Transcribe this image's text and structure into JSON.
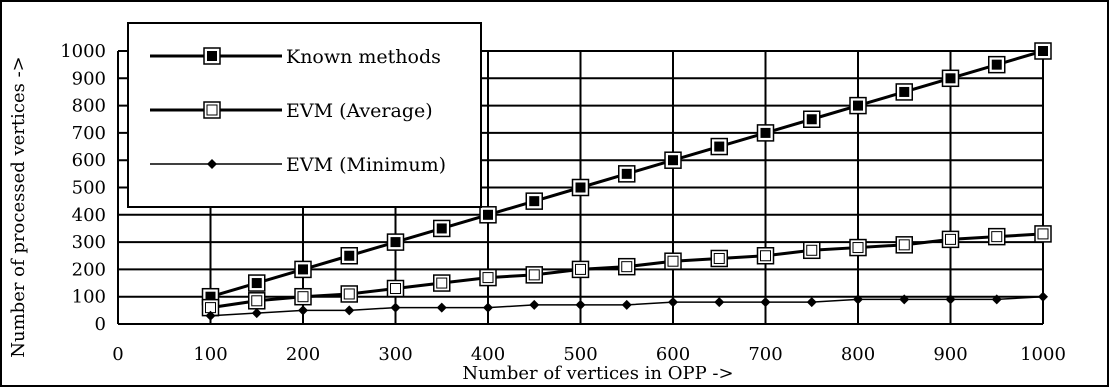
{
  "chart_data": {
    "type": "line",
    "title": "",
    "xlabel": "Number of vertices in OPP ->",
    "ylabel": "Number of processed vertices ->",
    "xlim": [
      0,
      1000
    ],
    "ylim": [
      0,
      1000
    ],
    "x_ticks": [
      0,
      100,
      200,
      300,
      400,
      500,
      600,
      700,
      800,
      900,
      1000
    ],
    "y_ticks": [
      0,
      100,
      200,
      300,
      400,
      500,
      600,
      700,
      800,
      900,
      1000
    ],
    "grid": true,
    "legend_position": "top-left",
    "x": [
      100,
      150,
      200,
      250,
      300,
      350,
      400,
      450,
      500,
      550,
      600,
      650,
      700,
      750,
      800,
      850,
      900,
      950,
      1000
    ],
    "series": [
      {
        "name": "Known methods",
        "marker": "filled-square",
        "values": [
          100,
          150,
          200,
          250,
          300,
          350,
          400,
          450,
          500,
          550,
          600,
          650,
          700,
          750,
          800,
          850,
          900,
          950,
          1000
        ]
      },
      {
        "name": "EVM (Average)",
        "marker": "open-square",
        "values": [
          60,
          85,
          100,
          110,
          130,
          150,
          170,
          180,
          200,
          210,
          230,
          240,
          250,
          270,
          280,
          290,
          310,
          320,
          330
        ]
      },
      {
        "name": "EVM (Minimum)",
        "marker": "diamond",
        "values": [
          30,
          40,
          50,
          50,
          60,
          60,
          60,
          70,
          70,
          70,
          80,
          80,
          80,
          80,
          90,
          90,
          90,
          90,
          100
        ]
      }
    ]
  }
}
